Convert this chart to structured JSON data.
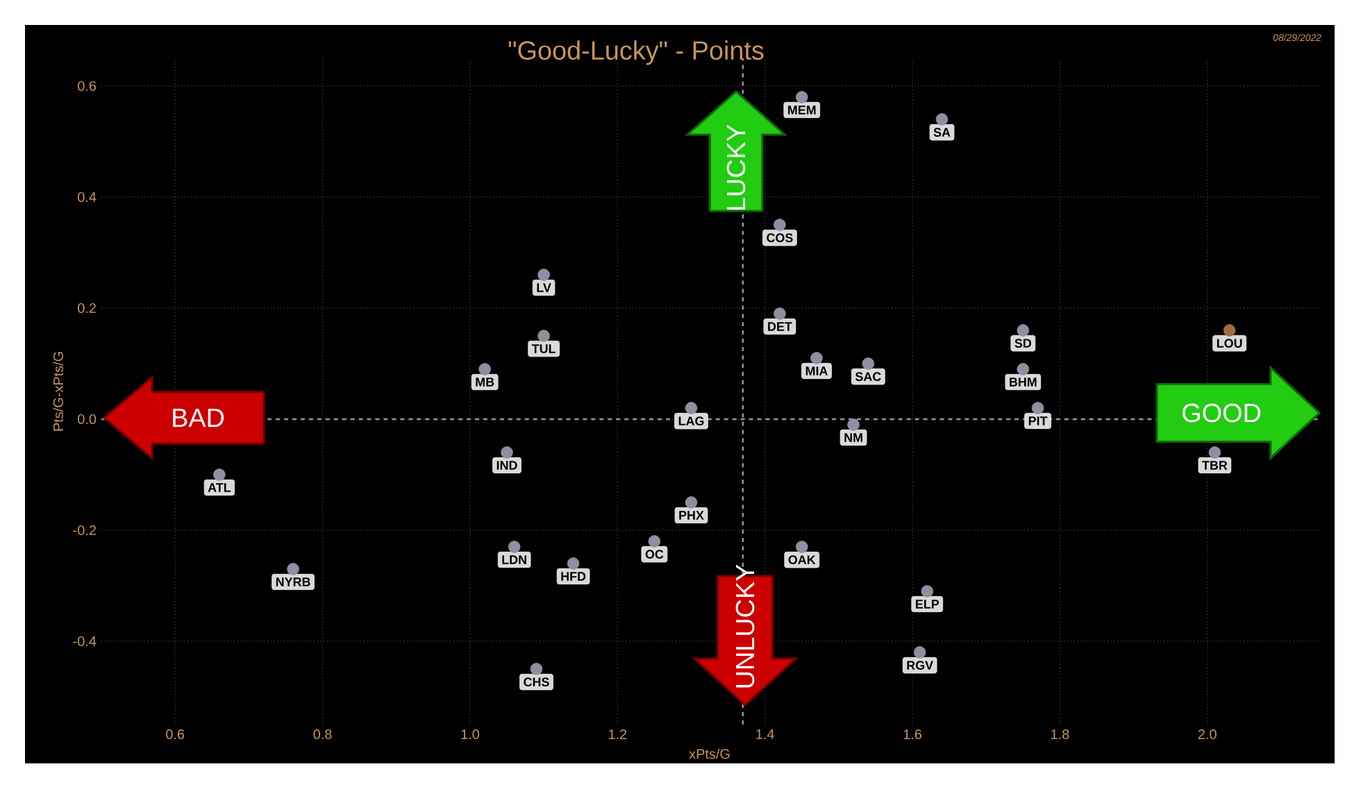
{
  "chart_data": {
    "type": "scatter",
    "title": "\"Good-Lucky\" - Points",
    "xlabel": "xPts/G",
    "ylabel": "Pts/G-xPts/G",
    "xlim": [
      0.5,
      2.15
    ],
    "ylim": [
      -0.55,
      0.65
    ],
    "xticks": [
      0.6,
      0.8,
      {
        "value": 1,
        "label": "1.0"
      },
      1.2,
      1.4,
      1.6,
      1.8,
      {
        "value": 2,
        "label": "2.0"
      }
    ],
    "yticks": [
      -0.4,
      -0.2,
      {
        "value": 0,
        "label": "0.0"
      },
      0.2,
      0.4,
      0.6
    ],
    "grid": true,
    "marker": "circle",
    "ref_lines": [
      {
        "axis": "x",
        "value": 1.37,
        "color": "#9a9a9a",
        "line_style": "dashed"
      },
      {
        "axis": "y",
        "value": 0,
        "color": "#9a9a9a",
        "line_style": "dashed"
      }
    ],
    "annotations": [
      "08/29/2022",
      "LUCKY",
      "UNLUCKY",
      "BAD",
      "GOOD"
    ],
    "series": [
      {
        "name": "MEM",
        "color": "#8e90a2",
        "x": [
          1.45
        ],
        "values": [
          0.58
        ]
      },
      {
        "name": "SA",
        "color": "#8e90a2",
        "x": [
          1.64
        ],
        "values": [
          0.54
        ]
      },
      {
        "name": "COS",
        "color": "#8e90a2",
        "x": [
          1.42
        ],
        "values": [
          0.35
        ]
      },
      {
        "name": "LV",
        "color": "#8e90a2",
        "x": [
          1.1
        ],
        "values": [
          0.26
        ]
      },
      {
        "name": "DET",
        "color": "#8e90a2",
        "x": [
          1.42
        ],
        "values": [
          0.19
        ]
      },
      {
        "name": "SD",
        "color": "#8e90a2",
        "x": [
          1.75
        ],
        "values": [
          0.16
        ]
      },
      {
        "name": "LOU",
        "color": "#9c6b3e",
        "x": [
          2.03
        ],
        "values": [
          0.16
        ]
      },
      {
        "name": "TUL",
        "color": "#8e90a2",
        "x": [
          1.1
        ],
        "values": [
          0.15
        ]
      },
      {
        "name": "MIA",
        "color": "#8e90a2",
        "x": [
          1.47
        ],
        "values": [
          0.11
        ]
      },
      {
        "name": "SAC",
        "color": "#8e90a2",
        "x": [
          1.54
        ],
        "values": [
          0.1
        ]
      },
      {
        "name": "MB",
        "color": "#8e90a2",
        "x": [
          1.02
        ],
        "values": [
          0.09
        ]
      },
      {
        "name": "BHM",
        "color": "#8e90a2",
        "x": [
          1.75
        ],
        "values": [
          0.09
        ]
      },
      {
        "name": "LAG",
        "color": "#8e90a2",
        "x": [
          1.3
        ],
        "values": [
          0.02
        ]
      },
      {
        "name": "PIT",
        "color": "#8e90a2",
        "x": [
          1.77
        ],
        "values": [
          0.02
        ]
      },
      {
        "name": "NM",
        "color": "#8e90a2",
        "x": [
          1.52
        ],
        "values": [
          -0.01
        ]
      },
      {
        "name": "IND",
        "color": "#8e90a2",
        "x": [
          1.05
        ],
        "values": [
          -0.06
        ]
      },
      {
        "name": "TBR",
        "color": "#8e90a2",
        "x": [
          2.01
        ],
        "values": [
          -0.06
        ]
      },
      {
        "name": "ATL",
        "color": "#8e90a2",
        "x": [
          0.66
        ],
        "values": [
          -0.1
        ]
      },
      {
        "name": "PHX",
        "color": "#8e90a2",
        "x": [
          1.3
        ],
        "values": [
          -0.15
        ]
      },
      {
        "name": "OC",
        "color": "#8e90a2",
        "x": [
          1.25
        ],
        "values": [
          -0.22
        ]
      },
      {
        "name": "LDN",
        "color": "#8e90a2",
        "x": [
          1.06
        ],
        "values": [
          -0.23
        ]
      },
      {
        "name": "OAK",
        "color": "#8e90a2",
        "x": [
          1.45
        ],
        "values": [
          -0.23
        ]
      },
      {
        "name": "HFD",
        "color": "#8e90a2",
        "x": [
          1.14
        ],
        "values": [
          -0.26
        ]
      },
      {
        "name": "NYRB",
        "color": "#8e90a2",
        "x": [
          0.76
        ],
        "values": [
          -0.27
        ]
      },
      {
        "name": "ELP",
        "color": "#8e90a2",
        "x": [
          1.62
        ],
        "values": [
          -0.31
        ]
      },
      {
        "name": "RGV",
        "color": "#8e90a2",
        "x": [
          1.61
        ],
        "values": [
          -0.42
        ]
      },
      {
        "name": "CHS",
        "color": "#8e90a2",
        "x": [
          1.09
        ],
        "values": [
          -0.45
        ]
      }
    ]
  }
}
